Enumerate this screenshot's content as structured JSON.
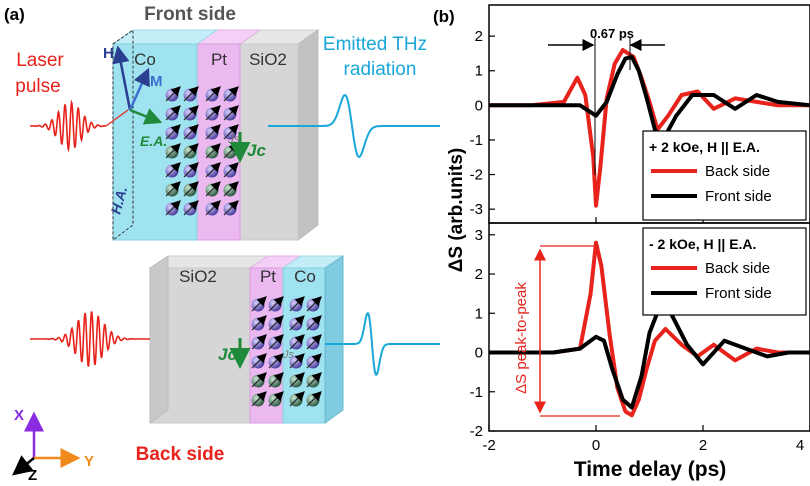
{
  "panel_a": {
    "label": "(a)",
    "front_title": "Front side",
    "back_title": "Back side",
    "laser_line1": "Laser",
    "laser_line2": "pulse",
    "emitted_line1": "Emitted THz",
    "emitted_line2": "radiation",
    "layers_top": [
      "Co",
      "Pt",
      "SiO2"
    ],
    "layers_bottom": [
      "SiO2",
      "Pt",
      "Co"
    ],
    "vec_H": "H",
    "vec_M": "M",
    "axis_EA": "E.A.",
    "axis_HA": "H.A.",
    "js_label": "Js",
    "jc_label": "Jc",
    "axes": {
      "x": "X",
      "y": "Y",
      "z": "Z"
    },
    "colors": {
      "co": "#9fe3f0",
      "pt": "#ecb8f0",
      "sio2": "#d6d6d6",
      "laser": "#e8231c",
      "thz": "#19a7d9",
      "green": "#1f8a3a"
    }
  },
  "panel_b": {
    "label": "(b)",
    "annotation": "0.67 ps",
    "peak_label": "ΔS peak-to-peak",
    "ylabel": "ΔS (arb.units)",
    "xlabel": "Time delay (ps)"
  },
  "chart_data": [
    {
      "type": "line",
      "title": "+ 2 kOe, H || E.A.",
      "xlim": [
        -2,
        4
      ],
      "ylim": [
        -3.4,
        2.9
      ],
      "xticks": [
        -2,
        0,
        2,
        4
      ],
      "yticks": [
        -3,
        -2,
        -1,
        0,
        1,
        2
      ],
      "series": [
        {
          "name": "Back side",
          "color": "#e8231c",
          "x": [
            -2,
            -1.2,
            -0.6,
            -0.35,
            -0.2,
            -0.05,
            0.0,
            0.08,
            0.2,
            0.35,
            0.5,
            0.7,
            0.85,
            1.0,
            1.15,
            1.35,
            1.6,
            1.9,
            2.2,
            2.6,
            3.0,
            3.4,
            4.0
          ],
          "y": [
            0,
            0,
            0.1,
            0.8,
            0.3,
            -1.5,
            -2.9,
            -1.8,
            0.2,
            1.2,
            1.6,
            1.4,
            0.8,
            0.1,
            -0.7,
            -0.3,
            0.3,
            0.4,
            -0.1,
            0.2,
            0.1,
            0.0,
            0.0
          ]
        },
        {
          "name": "Front side",
          "color": "#000000",
          "x": [
            -2,
            -0.8,
            -0.3,
            0.0,
            0.2,
            0.4,
            0.55,
            0.67,
            0.8,
            0.95,
            1.1,
            1.25,
            1.5,
            1.8,
            2.2,
            2.6,
            3.0,
            3.4,
            4.0
          ],
          "y": [
            0,
            0,
            0,
            -0.3,
            0.1,
            0.9,
            1.35,
            1.4,
            1.0,
            0.2,
            -0.7,
            -1.0,
            -0.3,
            0.3,
            0.3,
            -0.1,
            0.3,
            0.1,
            0.0
          ]
        }
      ]
    },
    {
      "type": "line",
      "title": "- 2 kOe, H || E.A.",
      "xlim": [
        -2,
        4
      ],
      "ylim": [
        -2.0,
        3.3
      ],
      "xticks": [
        -2,
        0,
        2,
        4
      ],
      "yticks": [
        -2,
        -1,
        0,
        1,
        2,
        3
      ],
      "series": [
        {
          "name": "Back side",
          "color": "#e8231c",
          "x": [
            -2,
            -0.8,
            -0.3,
            -0.1,
            0.0,
            0.1,
            0.25,
            0.4,
            0.55,
            0.67,
            0.8,
            0.95,
            1.1,
            1.3,
            1.6,
            1.9,
            2.2,
            2.6,
            3.0,
            3.4,
            4.0
          ],
          "y": [
            0,
            0,
            0.1,
            1.5,
            2.8,
            2.2,
            0.5,
            -0.9,
            -1.5,
            -1.6,
            -1.2,
            -0.4,
            0.3,
            0.6,
            0.2,
            -0.1,
            0.2,
            -0.2,
            0.1,
            0.0,
            0.0
          ]
        },
        {
          "name": "Front side",
          "color": "#000000",
          "x": [
            -2,
            -0.8,
            -0.3,
            0.0,
            0.15,
            0.3,
            0.5,
            0.67,
            0.85,
            1.0,
            1.2,
            1.4,
            1.7,
            2.0,
            2.4,
            2.8,
            3.2,
            3.6,
            4.0
          ],
          "y": [
            0,
            0,
            0.1,
            0.4,
            0.3,
            -0.4,
            -1.2,
            -1.4,
            -0.6,
            0.5,
            1.2,
            1.0,
            0.2,
            -0.3,
            0.3,
            0.1,
            -0.1,
            0.0,
            0.0
          ]
        }
      ]
    }
  ]
}
